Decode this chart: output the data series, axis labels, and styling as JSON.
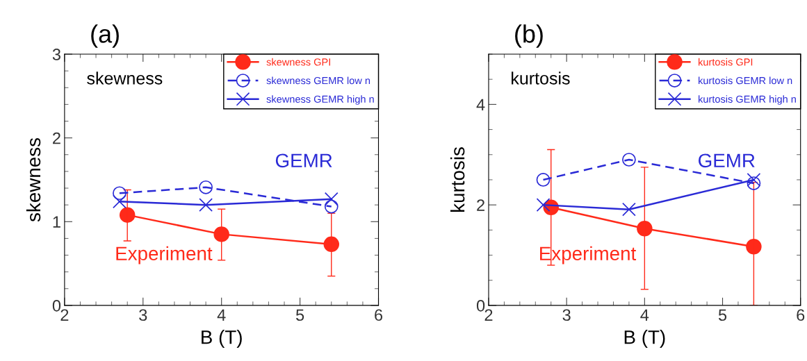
{
  "chart_data": [
    {
      "type": "line",
      "title": "(a)",
      "xlabel": "B (T)",
      "ylabel": "skewness",
      "xlim": [
        2,
        6
      ],
      "xticks": [
        2,
        3,
        4,
        5,
        6
      ],
      "ylim": [
        0,
        3
      ],
      "yticks": [
        0,
        1,
        2,
        3
      ],
      "grid": false,
      "legend": "top right",
      "annotations": [
        "skewness",
        "GEMR",
        "Experiment"
      ],
      "series": [
        {
          "name": "skewness GPI",
          "color": "#ff2a1a",
          "x": [
            2.8,
            4,
            5.4
          ],
          "values": [
            1.08,
            0.85,
            0.73
          ],
          "errors": [
            [
              0.77,
              1.38
            ],
            [
              0.54,
              1.15
            ],
            [
              0.35,
              1.1
            ]
          ],
          "marker": "circle",
          "line_style": "solid"
        },
        {
          "name": "skewness GEMR low n",
          "color": "#2a2ad6",
          "x": [
            2.7,
            3.8,
            5.4
          ],
          "values": [
            1.34,
            1.41,
            1.18
          ],
          "marker": "circle",
          "line_style": "dashed"
        },
        {
          "name": "skewness GEMR high n",
          "color": "#2a2ad6",
          "x": [
            2.7,
            3.8,
            5.4
          ],
          "values": [
            1.24,
            1.2,
            1.27
          ],
          "marker": "cross",
          "line_style": "solid"
        }
      ]
    },
    {
      "type": "line",
      "title": "(b)",
      "xlabel": "B (T)",
      "ylabel": "kurtosis",
      "xlim": [
        2,
        6
      ],
      "xticks": [
        2,
        3,
        4,
        5,
        6
      ],
      "ylim": [
        0,
        5
      ],
      "yticks": [
        0,
        2,
        4
      ],
      "grid": false,
      "legend": "top right",
      "annotations": [
        "kurtosis",
        "GEMR",
        "Experiment"
      ],
      "series": [
        {
          "name": "kurtosis GPI",
          "color": "#ff2a1a",
          "x": [
            2.8,
            4,
            5.4
          ],
          "values": [
            1.95,
            1.53,
            1.17
          ],
          "errors": [
            [
              0.8,
              3.1
            ],
            [
              0.32,
              2.75
            ],
            [
              0,
              2.45
            ]
          ],
          "marker": "circle",
          "line_style": "solid"
        },
        {
          "name": "kurtosis GEMR low n",
          "color": "#2a2ad6",
          "x": [
            2.7,
            3.8,
            5.4
          ],
          "values": [
            2.5,
            2.9,
            2.43
          ],
          "marker": "circle",
          "line_style": "dashed"
        },
        {
          "name": "kurtosis GEMR high n",
          "color": "#2a2ad6",
          "x": [
            2.7,
            3.8,
            5.4
          ],
          "values": [
            2.0,
            1.91,
            2.5
          ],
          "marker": "cross",
          "line_style": "solid"
        }
      ]
    }
  ]
}
